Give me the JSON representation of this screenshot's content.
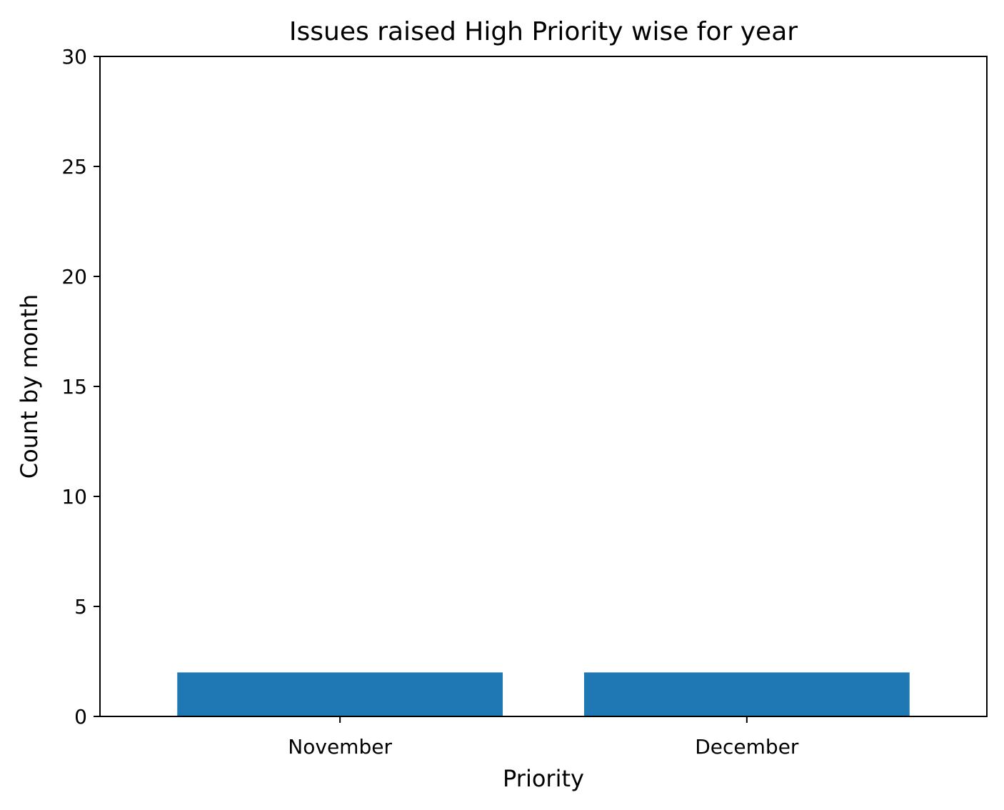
{
  "chart_data": {
    "type": "bar",
    "title": "Issues raised High Priority wise for year",
    "xlabel": "Priority",
    "ylabel": "Count by month",
    "categories": [
      "November",
      "December"
    ],
    "values": [
      2,
      2
    ],
    "ylim": [
      0,
      30
    ],
    "yticks": [
      0,
      5,
      10,
      15,
      20,
      25,
      30
    ],
    "grid": false,
    "bar_color": "#1f77b4"
  }
}
